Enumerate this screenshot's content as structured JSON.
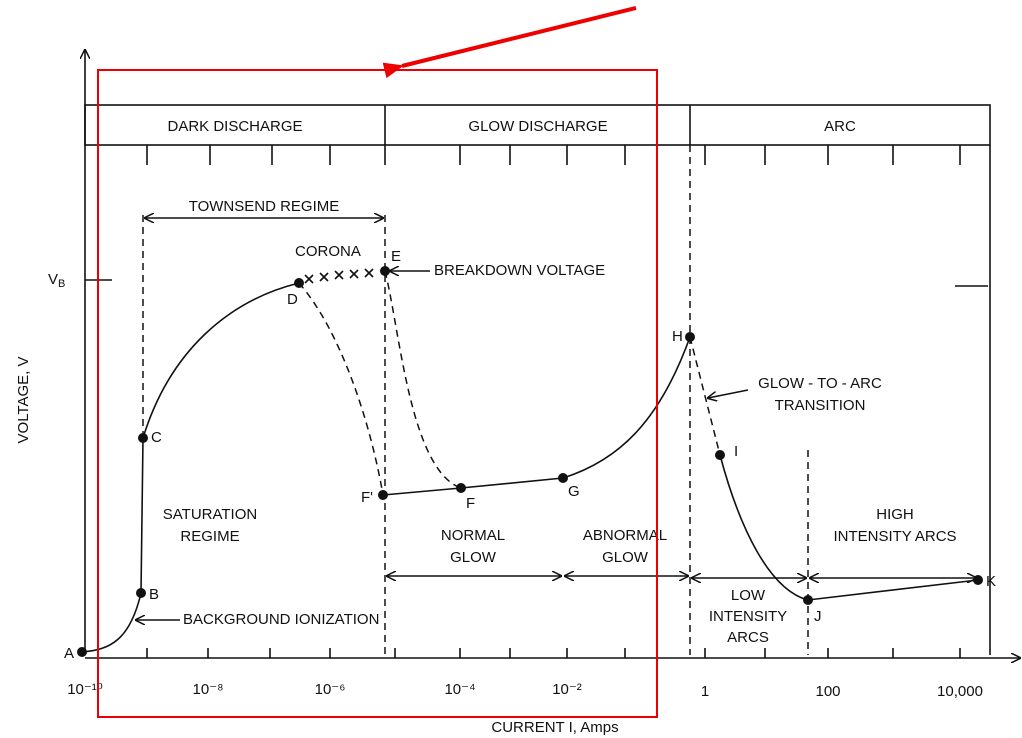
{
  "regions": [
    "DARK DISCHARGE",
    "GLOW DISCHARGE",
    "ARC"
  ],
  "points": [
    "A",
    "B",
    "C",
    "D",
    "E",
    "F'",
    "F",
    "G",
    "H",
    "I",
    "J",
    "K"
  ],
  "annotations": {
    "townsend": "TOWNSEND REGIME",
    "corona": "CORONA",
    "breakdown": "BREAKDOWN VOLTAGE",
    "glow_to_arc": [
      "GLOW - TO - ARC",
      "TRANSITION"
    ],
    "saturation": [
      "SATURATION",
      "REGIME"
    ],
    "background": "BACKGROUND IONIZATION",
    "normal_glow": [
      "NORMAL",
      "GLOW"
    ],
    "abnormal_glow": [
      "ABNORMAL",
      "GLOW"
    ],
    "low_arcs": [
      "LOW",
      "INTENSITY",
      "ARCS"
    ],
    "high_arcs": [
      "HIGH",
      "INTENSITY ARCS"
    ]
  },
  "y_axis": {
    "label": "VOLTAGE, V",
    "vb": "V",
    "vb_sub": "B"
  },
  "x_axis": {
    "label": "CURRENT I, Amps",
    "ticks": [
      "10⁻¹⁰",
      "10⁻⁸",
      "10⁻⁶",
      "10⁻⁴",
      "10⁻²",
      "1",
      "100",
      "10,000"
    ]
  }
}
